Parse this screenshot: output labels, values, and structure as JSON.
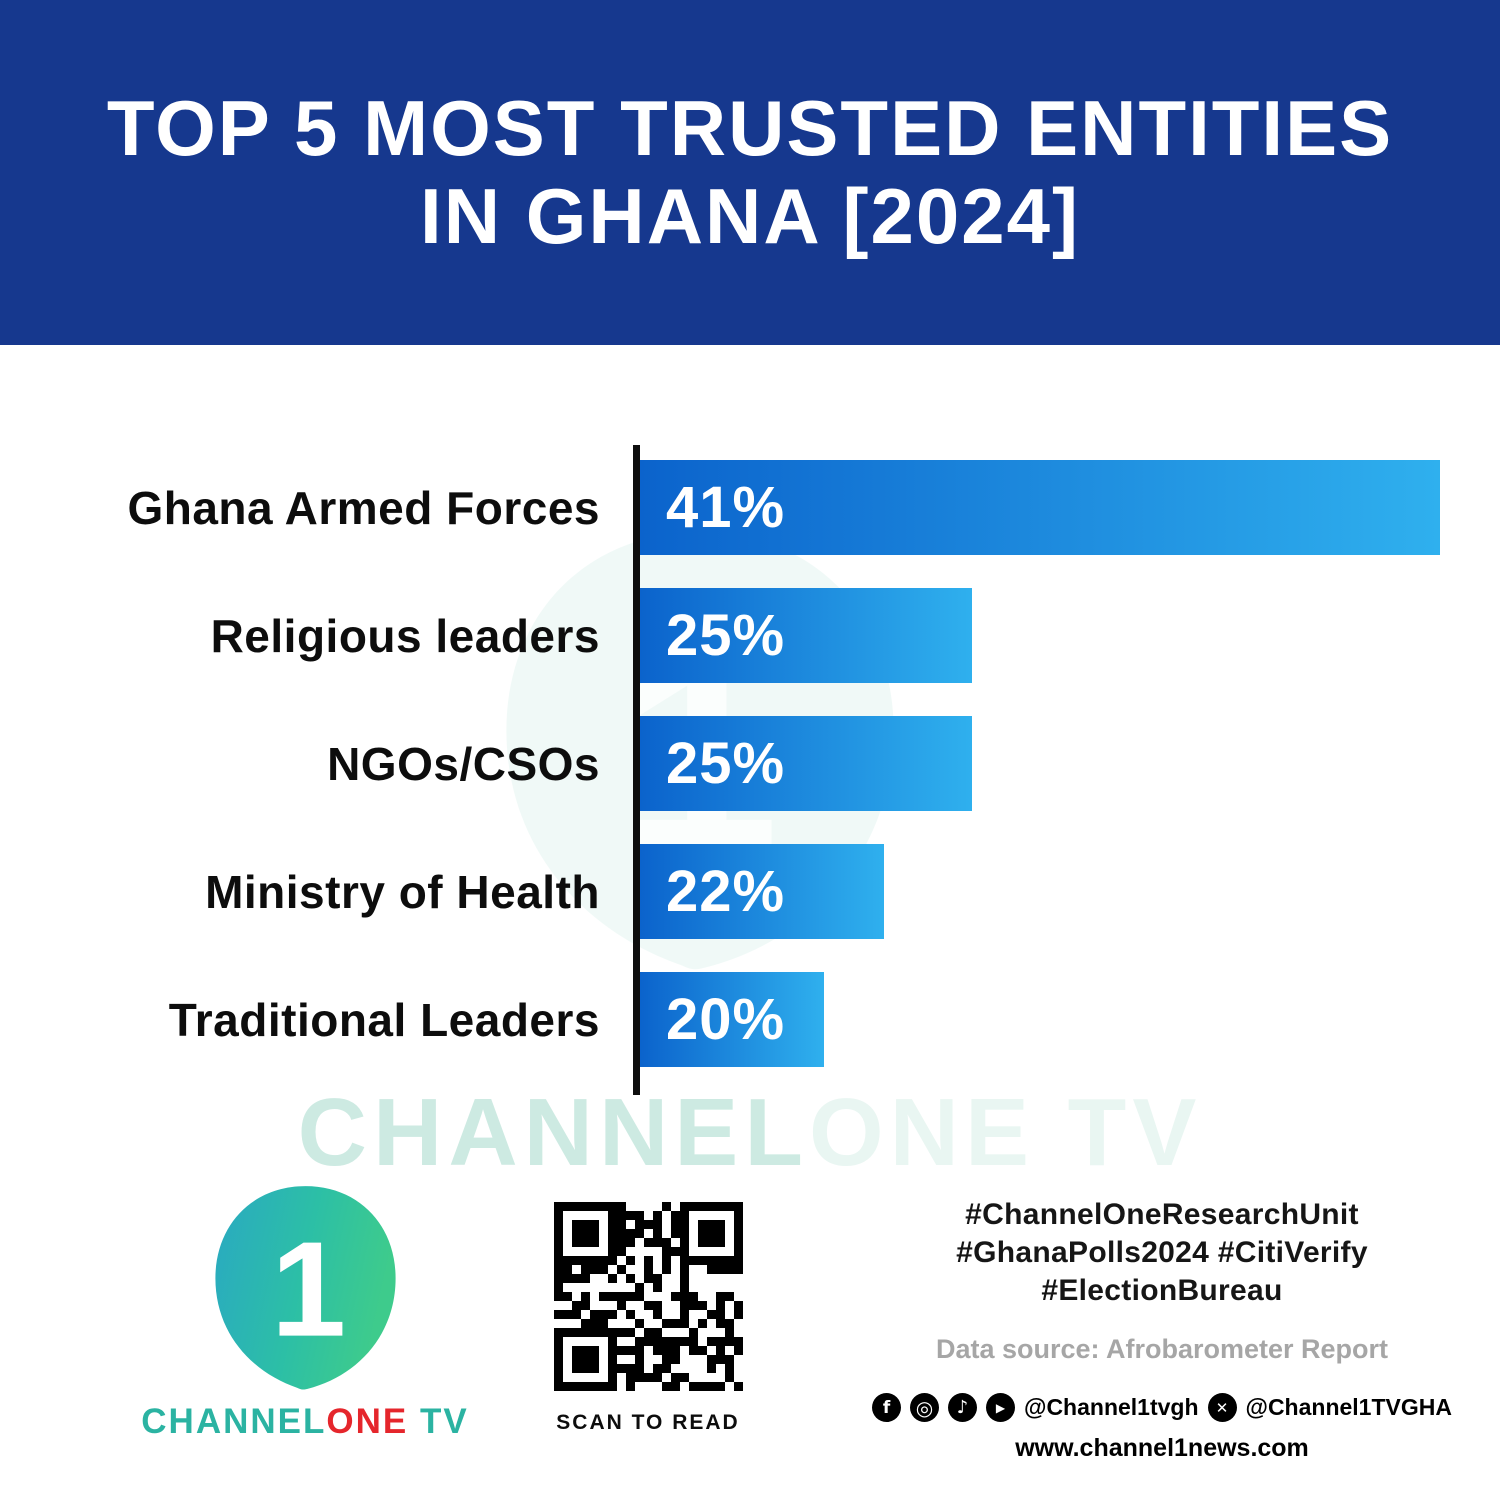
{
  "colors": {
    "header_bg": "#16388e",
    "bar_gradient_start": "#0b63cc",
    "bar_gradient_end": "#2fb0ee",
    "axis": "#0e0e0e",
    "brand_teal": "#2bb3a2",
    "brand_red": "#e5262c",
    "watermark": "#cdeae2",
    "hashtag_text": "#161616",
    "muted_text": "#a6a6a6"
  },
  "header": {
    "title_line1": "TOP 5 MOST TRUSTED ENTITIES",
    "title_line2": "IN GHANA [2024]"
  },
  "chart_data": {
    "type": "bar",
    "orientation": "horizontal",
    "title": "Top 5 Most Trusted Entities in Ghana [2024]",
    "categories": [
      "Ghana Armed Forces",
      "Religious leaders",
      "NGOs/CSOs",
      "Ministry of Health",
      "Traditional Leaders"
    ],
    "values": [
      41,
      25,
      25,
      22,
      20
    ],
    "value_labels": [
      "41%",
      "25%",
      "25%",
      "22%",
      "20%"
    ],
    "xlim": [
      0,
      41
    ],
    "grid": false,
    "legend": false,
    "value_label_position": "inside-start",
    "display_width_pct": [
      100,
      41.5,
      41.5,
      30.5,
      23
    ]
  },
  "watermark": {
    "part1": "CHANNEL",
    "part2": "ONE TV",
    "logo_number": "1"
  },
  "footer": {
    "logo": {
      "number": "1",
      "brand_part1": "CHANNEL",
      "brand_part2": "ONE",
      "brand_part3": " TV"
    },
    "qr_caption": "SCAN TO READ",
    "hashtags": [
      "#ChannelOneResearchUnit",
      "#GhanaPolls2024 #CitiVerify",
      "#ElectionBureau"
    ],
    "data_source": "Data source: Afrobarometer Report",
    "social": {
      "icons": [
        "facebook-icon",
        "instagram-icon",
        "tiktok-icon",
        "youtube-icon",
        "x-icon"
      ],
      "handle1": "@Channel1tvgh",
      "handle2": "@Channel1TVGHA"
    },
    "website": "www.channel1news.com"
  }
}
